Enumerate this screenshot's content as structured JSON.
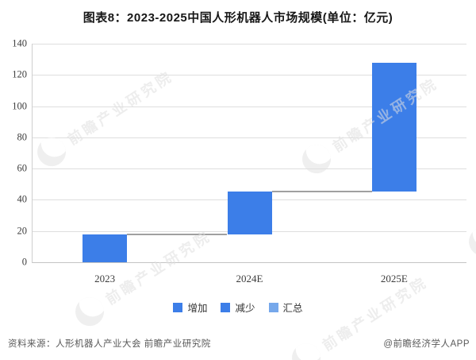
{
  "title": "图表8：2023-2025中国人形机器人市场规模(单位：亿元)",
  "chart_data": {
    "type": "bar",
    "subtype": "waterfall",
    "title": "图表8：2023-2025中国人形机器人市场规模(单位：亿元)",
    "unit": "亿元",
    "categories": [
      "2023",
      "2024E",
      "2025E"
    ],
    "series": [
      {
        "name": "增加",
        "values": [
          17.7,
          27.6,
          82.4
        ]
      },
      {
        "name": "汇总(累计)",
        "values": [
          17.7,
          45.3,
          127.7
        ]
      }
    ],
    "segments": [
      {
        "category": "2023",
        "start": 0,
        "end": 17.7
      },
      {
        "category": "2024E",
        "start": 17.7,
        "end": 45.3
      },
      {
        "category": "2025E",
        "start": 45.3,
        "end": 127.7
      }
    ],
    "ylim": [
      0,
      140
    ],
    "ytick_step": 20,
    "yticks": [
      0,
      20,
      40,
      60,
      80,
      100,
      120,
      140
    ],
    "grid": true,
    "legend_position": "bottom",
    "legend": [
      {
        "label": "增加",
        "color": "#3C7EE8"
      },
      {
        "label": "减少",
        "color": "#3C7EE8"
      },
      {
        "label": "汇总",
        "color": "#76A8EB"
      }
    ]
  },
  "colors": {
    "bar": "#3C7EE8",
    "gridline": "#DEDEDE",
    "axis": "#C6C6C6",
    "connector": "#A0A0A0",
    "tick_label": "#3D3D3D",
    "footer_text": "#595959"
  },
  "footer": {
    "source": "资料来源：人形机器人产业大会 前瞻产业研究院",
    "credit": "@前瞻经济学人APP"
  },
  "watermark": {
    "text": "前瞻产业研究院"
  }
}
